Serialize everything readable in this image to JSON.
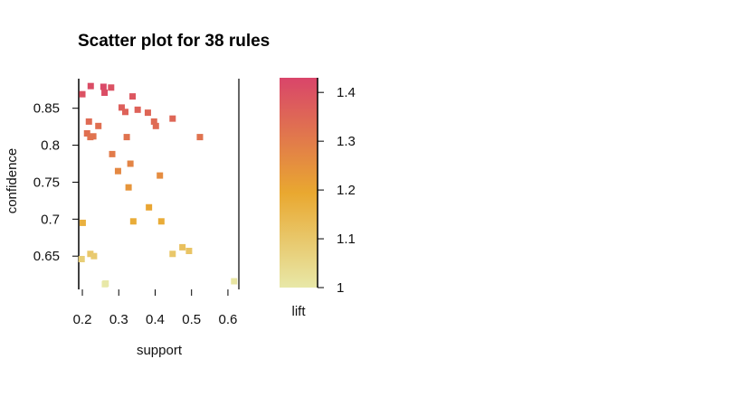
{
  "chart_data": {
    "type": "scatter",
    "title": "Scatter plot for 38 rules",
    "xlabel": "support",
    "ylabel": "confidence",
    "x_ticks": [
      "0.2",
      "0.3",
      "0.4",
      "0.5",
      "0.6"
    ],
    "y_ticks": [
      "0.65",
      "0.7",
      "0.75",
      "0.8",
      "0.85"
    ],
    "xlim": [
      0.19,
      0.63
    ],
    "ylim": [
      0.605,
      0.89
    ],
    "color_scale": {
      "label": "lift",
      "ticks": [
        "1",
        "1.1",
        "1.2",
        "1.3",
        "1.4"
      ],
      "range": [
        1.0,
        1.43
      ],
      "low_color": "#e8e8a8",
      "mid_color": "#e9a830",
      "high_color": "#d9456a"
    },
    "points": [
      {
        "x": 0.2,
        "y": 0.869,
        "lift": 1.4
      },
      {
        "x": 0.223,
        "y": 0.88,
        "lift": 1.41
      },
      {
        "x": 0.258,
        "y": 0.879,
        "lift": 1.42
      },
      {
        "x": 0.261,
        "y": 0.871,
        "lift": 1.41
      },
      {
        "x": 0.279,
        "y": 0.878,
        "lift": 1.4
      },
      {
        "x": 0.338,
        "y": 0.866,
        "lift": 1.39
      },
      {
        "x": 0.308,
        "y": 0.851,
        "lift": 1.37
      },
      {
        "x": 0.318,
        "y": 0.845,
        "lift": 1.36
      },
      {
        "x": 0.352,
        "y": 0.848,
        "lift": 1.36
      },
      {
        "x": 0.38,
        "y": 0.844,
        "lift": 1.35
      },
      {
        "x": 0.397,
        "y": 0.832,
        "lift": 1.34
      },
      {
        "x": 0.402,
        "y": 0.826,
        "lift": 1.34
      },
      {
        "x": 0.448,
        "y": 0.836,
        "lift": 1.35
      },
      {
        "x": 0.218,
        "y": 0.832,
        "lift": 1.34
      },
      {
        "x": 0.244,
        "y": 0.826,
        "lift": 1.33
      },
      {
        "x": 0.213,
        "y": 0.816,
        "lift": 1.33
      },
      {
        "x": 0.222,
        "y": 0.811,
        "lift": 1.32
      },
      {
        "x": 0.23,
        "y": 0.812,
        "lift": 1.32
      },
      {
        "x": 0.322,
        "y": 0.811,
        "lift": 1.32
      },
      {
        "x": 0.523,
        "y": 0.811,
        "lift": 1.32
      },
      {
        "x": 0.282,
        "y": 0.788,
        "lift": 1.3
      },
      {
        "x": 0.332,
        "y": 0.775,
        "lift": 1.28
      },
      {
        "x": 0.298,
        "y": 0.765,
        "lift": 1.27
      },
      {
        "x": 0.413,
        "y": 0.759,
        "lift": 1.26
      },
      {
        "x": 0.327,
        "y": 0.743,
        "lift": 1.24
      },
      {
        "x": 0.383,
        "y": 0.716,
        "lift": 1.2
      },
      {
        "x": 0.34,
        "y": 0.697,
        "lift": 1.18
      },
      {
        "x": 0.417,
        "y": 0.697,
        "lift": 1.18
      },
      {
        "x": 0.201,
        "y": 0.695,
        "lift": 1.17
      },
      {
        "x": 0.475,
        "y": 0.662,
        "lift": 1.12
      },
      {
        "x": 0.493,
        "y": 0.657,
        "lift": 1.11
      },
      {
        "x": 0.448,
        "y": 0.653,
        "lift": 1.1
      },
      {
        "x": 0.222,
        "y": 0.653,
        "lift": 1.1
      },
      {
        "x": 0.232,
        "y": 0.65,
        "lift": 1.09
      },
      {
        "x": 0.198,
        "y": 0.646,
        "lift": 1.08
      },
      {
        "x": 0.264,
        "y": 0.613,
        "lift": 1.0
      },
      {
        "x": 0.617,
        "y": 0.616,
        "lift": 1.01
      },
      {
        "x": 0.262,
        "y": 0.612,
        "lift": 1.0
      }
    ]
  }
}
